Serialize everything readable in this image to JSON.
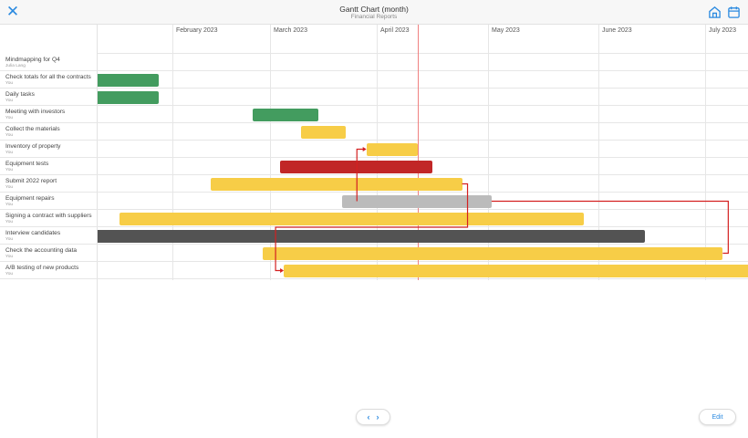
{
  "header": {
    "title": "Gantt Chart (month)",
    "subtitle": "Financial Reports",
    "close_icon": "close-icon",
    "home_icon": "home-icon",
    "calendar_icon": "calendar-icon"
  },
  "colors": {
    "accent": "#2b8ae0",
    "green": "#439c5f",
    "yellow": "#f7cd47",
    "red": "#c12727",
    "gray": "#bbbbbb",
    "dark": "#535353",
    "dependency": "#d42020",
    "today": "#f08080"
  },
  "timeline": {
    "months": [
      {
        "label": "February 2023",
        "key": "2023-02"
      },
      {
        "label": "March 2023",
        "key": "2023-03"
      },
      {
        "label": "April 2023",
        "key": "2023-04"
      },
      {
        "label": "May 2023",
        "key": "2023-05"
      },
      {
        "label": "June 2023",
        "key": "2023-06"
      },
      {
        "label": "July 2023",
        "key": "2023-07"
      }
    ],
    "today": "2023-04-12"
  },
  "tasks": [
    {
      "name": "Mindmapping for Q4",
      "owner": "Julia Lang"
    },
    {
      "name": "Check totals for all the contracts",
      "owner": "You",
      "start": "2023-01-05",
      "end": "2023-01-27",
      "color": "green"
    },
    {
      "name": "Daily tasks",
      "owner": "You",
      "start": "2023-01-05",
      "end": "2023-01-27",
      "color": "green"
    },
    {
      "name": "Meeting with investors",
      "owner": "You",
      "start": "2023-02-24",
      "end": "2023-03-14",
      "color": "green"
    },
    {
      "name": "Collect the materials",
      "owner": "You",
      "start": "2023-03-10",
      "end": "2023-03-22",
      "color": "yellow"
    },
    {
      "name": "Inventory of property",
      "owner": "You",
      "start": "2023-03-29",
      "end": "2023-04-11",
      "color": "yellow"
    },
    {
      "name": "Equipment tests",
      "owner": "You",
      "start": "2023-03-04",
      "end": "2023-04-15",
      "color": "red"
    },
    {
      "name": "Submit 2022 report",
      "owner": "You",
      "start": "2023-02-12",
      "end": "2023-04-23",
      "color": "yellow"
    },
    {
      "name": "Equipment repairs",
      "owner": "You",
      "start": "2023-03-22",
      "end": "2023-05-01",
      "color": "gray"
    },
    {
      "name": "Signing a contract with suppliers",
      "owner": "You",
      "start": "2023-01-17",
      "end": "2023-05-27",
      "color": "yellow"
    },
    {
      "name": "Interview candidates",
      "owner": "You",
      "start": "2023-01-05",
      "end": "2023-06-13",
      "color": "dark"
    },
    {
      "name": "Check the accounting data",
      "owner": "You",
      "start": "2023-02-27",
      "end": "2023-07-05",
      "color": "yellow"
    },
    {
      "name": "A/B testing of new products",
      "owner": "You",
      "start": "2023-03-05",
      "end": "2023-07-31",
      "color": "yellow"
    }
  ],
  "dependencies": [
    {
      "from": 8,
      "to": 5,
      "type": "start-to-start"
    },
    {
      "from": 7,
      "to": 12,
      "type": "finish-to-start"
    },
    {
      "from": 8,
      "to": 11,
      "type": "finish-to-finish"
    }
  ],
  "footer": {
    "prev_icon": "‹",
    "next_icon": "›",
    "edit_label": "Edit"
  }
}
